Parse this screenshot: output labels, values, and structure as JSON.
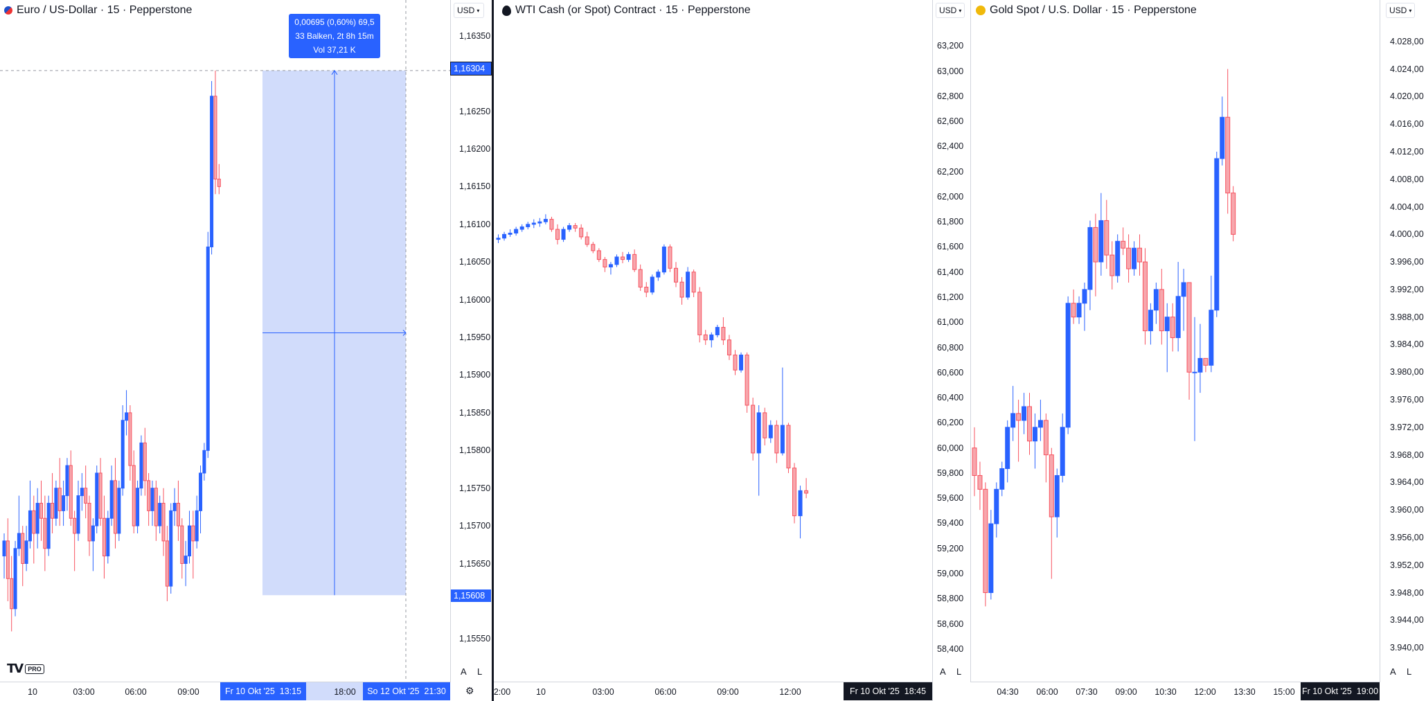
{
  "panes": [
    {
      "title": "Euro / US-Dollar · 15 · Pepperstone",
      "currency": "USD",
      "price_ticks": [
        "1,16350",
        "1,16250",
        "1,16200",
        "1,16150",
        "1,16100",
        "1,16050",
        "1,16000",
        "1,15950",
        "1,15900",
        "1,15850",
        "1,15800",
        "1,15750",
        "1,15700",
        "1,15650",
        "1,15550"
      ],
      "price_labels": {
        "top": "1,16304",
        "bottom": "1,15608"
      },
      "time_ticks": [
        "10",
        "03:00",
        "06:00",
        "09:00",
        "18:00"
      ],
      "time_labels": {
        "start": "Fr 10 Okt '25",
        "start_time": "13:15",
        "end": "So 12 Okt '25",
        "end_time": "21:30"
      },
      "measure": {
        "line1": "0,00695 (0,60%) 69,5",
        "line2": "33 Balken, 2t 8h 15m",
        "line3": "Vol 37,21 K"
      },
      "auto_btn": "A",
      "log_btn": "L"
    },
    {
      "title": "WTI Cash (or Spot) Contract · 15 · Pepperstone",
      "currency": "USD",
      "price_ticks": [
        "63,200",
        "63,000",
        "62,800",
        "62,600",
        "62,400",
        "62,200",
        "62,000",
        "61,800",
        "61,600",
        "61,400",
        "61,200",
        "61,000",
        "60,800",
        "60,600",
        "60,400",
        "60,200",
        "60,000",
        "59,800",
        "59,600",
        "59,400",
        "59,200",
        "59,000",
        "58,800",
        "58,600",
        "58,400"
      ],
      "time_ticks": [
        "2:00",
        "10",
        "03:00",
        "06:00",
        "09:00",
        "12:00"
      ],
      "time_labels": {
        "date": "Fr 10 Okt '25",
        "time": "18:45"
      },
      "auto_btn": "A",
      "log_btn": "L"
    },
    {
      "title": "Gold Spot / U.S. Dollar · 15 · Pepperstone",
      "currency": "USD",
      "price_ticks": [
        "4.028,00",
        "4.024,00",
        "4.020,00",
        "4.016,00",
        "4.012,00",
        "4.008,00",
        "4.004,00",
        "4.000,00",
        "3.996,00",
        "3.992,00",
        "3.988,00",
        "3.984,00",
        "3.980,00",
        "3.976,00",
        "3.972,00",
        "3.968,00",
        "3.964,00",
        "3.960,00",
        "3.956,00",
        "3.952,00",
        "3.948,00",
        "3.944,00",
        "3.940,00"
      ],
      "time_ticks": [
        "04:30",
        "06:00",
        "07:30",
        "09:00",
        "10:30",
        "12:00",
        "13:30",
        "15:00"
      ],
      "time_labels": {
        "date": "Fr 10 Okt '25",
        "time": "19:00"
      },
      "auto_btn": "A",
      "log_btn": "L"
    }
  ],
  "logo": {
    "pro": "PRO"
  },
  "colors": {
    "up": "#2962ff",
    "down": "#f7525f",
    "down_fill": "#f7a7ad",
    "measure_fill": "#d1dcfb",
    "text": "#131722"
  },
  "chart_data": [
    {
      "type": "candlestick",
      "symbol": "EURUSD",
      "ylim": [
        1.1552,
        1.1637
      ],
      "candles": [
        [
          1.1566,
          1.1569,
          1.1563,
          1.1568
        ],
        [
          1.1568,
          1.1571,
          1.156,
          1.1563
        ],
        [
          1.1563,
          1.1566,
          1.1556,
          1.1559
        ],
        [
          1.1559,
          1.1568,
          1.1558,
          1.1567
        ],
        [
          1.1567,
          1.1574,
          1.1566,
          1.1569
        ],
        [
          1.1569,
          1.157,
          1.1562,
          1.1565
        ],
        [
          1.1565,
          1.157,
          1.1564,
          1.1568
        ],
        [
          1.1568,
          1.1576,
          1.1567,
          1.1572
        ],
        [
          1.1572,
          1.1574,
          1.1565,
          1.1569
        ],
        [
          1.1569,
          1.1575,
          1.1567,
          1.1573
        ],
        [
          1.1573,
          1.1576,
          1.1568,
          1.1571
        ],
        [
          1.1571,
          1.1574,
          1.1564,
          1.1567
        ],
        [
          1.1567,
          1.1574,
          1.1566,
          1.1573
        ],
        [
          1.1573,
          1.1577,
          1.1569,
          1.1571
        ],
        [
          1.1571,
          1.1576,
          1.157,
          1.1575
        ],
        [
          1.1575,
          1.1579,
          1.157,
          1.1572
        ],
        [
          1.1572,
          1.1576,
          1.157,
          1.1574
        ],
        [
          1.1574,
          1.1579,
          1.1572,
          1.1578
        ],
        [
          1.1578,
          1.158,
          1.157,
          1.1571
        ],
        [
          1.1571,
          1.1572,
          1.1564,
          1.1569
        ],
        [
          1.1569,
          1.1576,
          1.1568,
          1.1574
        ],
        [
          1.1574,
          1.1577,
          1.1572,
          1.1575
        ],
        [
          1.1575,
          1.1578,
          1.1571,
          1.1573
        ],
        [
          1.1573,
          1.1574,
          1.1566,
          1.1568
        ],
        [
          1.1568,
          1.1571,
          1.1564,
          1.157
        ],
        [
          1.157,
          1.1578,
          1.1569,
          1.1577
        ],
        [
          1.1577,
          1.1579,
          1.157,
          1.1571
        ],
        [
          1.1571,
          1.1574,
          1.1563,
          1.1566
        ],
        [
          1.1566,
          1.1572,
          1.1565,
          1.1571
        ],
        [
          1.1571,
          1.1578,
          1.157,
          1.1576
        ],
        [
          1.1576,
          1.1579,
          1.1567,
          1.1569
        ],
        [
          1.1569,
          1.1576,
          1.1568,
          1.1575
        ],
        [
          1.1575,
          1.1586,
          1.1574,
          1.1584
        ],
        [
          1.1584,
          1.1588,
          1.1582,
          1.1585
        ],
        [
          1.1585,
          1.1586,
          1.1576,
          1.1578
        ],
        [
          1.1578,
          1.158,
          1.1569,
          1.157
        ],
        [
          1.157,
          1.1576,
          1.1569,
          1.1575
        ],
        [
          1.1575,
          1.1582,
          1.1574,
          1.1581
        ],
        [
          1.1581,
          1.1583,
          1.1574,
          1.1576
        ],
        [
          1.1576,
          1.1577,
          1.157,
          1.1572
        ],
        [
          1.1572,
          1.1576,
          1.157,
          1.1575
        ],
        [
          1.1575,
          1.1576,
          1.1568,
          1.157
        ],
        [
          1.157,
          1.1574,
          1.1569,
          1.1573
        ],
        [
          1.1573,
          1.1575,
          1.1566,
          1.1568
        ],
        [
          1.1568,
          1.157,
          1.156,
          1.1562
        ],
        [
          1.1562,
          1.1573,
          1.1561,
          1.1572
        ],
        [
          1.1572,
          1.1575,
          1.157,
          1.1573
        ],
        [
          1.1573,
          1.1576,
          1.1568,
          1.157
        ],
        [
          1.157,
          1.1571,
          1.1563,
          1.1565
        ],
        [
          1.1565,
          1.1568,
          1.1562,
          1.1566
        ],
        [
          1.1566,
          1.1572,
          1.1565,
          1.157
        ],
        [
          1.157,
          1.1572,
          1.1563,
          1.1568
        ],
        [
          1.1568,
          1.1574,
          1.1567,
          1.1572
        ],
        [
          1.1572,
          1.1578,
          1.1569,
          1.1577
        ],
        [
          1.1577,
          1.1581,
          1.1576,
          1.158
        ],
        [
          1.158,
          1.1609,
          1.1579,
          1.1607
        ],
        [
          1.1607,
          1.1629,
          1.1606,
          1.1627
        ],
        [
          1.1627,
          1.16304,
          1.1614,
          1.1616
        ],
        [
          1.1616,
          1.1618,
          1.1614,
          1.1615
        ]
      ]
    },
    {
      "type": "candlestick",
      "symbol": "WTI",
      "ylim": [
        58.3,
        63.4
      ],
      "candles": [
        [
          61.66,
          61.7,
          61.63,
          61.67
        ],
        [
          61.67,
          61.72,
          61.65,
          61.7
        ],
        [
          61.7,
          61.74,
          61.68,
          61.71
        ],
        [
          61.71,
          61.76,
          61.69,
          61.74
        ],
        [
          61.74,
          61.78,
          61.72,
          61.76
        ],
        [
          61.76,
          61.8,
          61.74,
          61.78
        ],
        [
          61.78,
          61.82,
          61.75,
          61.79
        ],
        [
          61.79,
          61.83,
          61.76,
          61.8
        ],
        [
          61.8,
          61.86,
          61.78,
          61.82
        ],
        [
          61.82,
          61.84,
          61.72,
          61.74
        ],
        [
          61.74,
          61.78,
          61.62,
          61.66
        ],
        [
          61.66,
          61.76,
          61.64,
          61.74
        ],
        [
          61.74,
          61.79,
          61.72,
          61.77
        ],
        [
          61.77,
          61.79,
          61.72,
          61.75
        ],
        [
          61.75,
          61.78,
          61.66,
          61.68
        ],
        [
          61.68,
          61.72,
          61.6,
          61.62
        ],
        [
          61.62,
          61.64,
          61.55,
          61.57
        ],
        [
          61.57,
          61.59,
          61.48,
          61.5
        ],
        [
          61.5,
          61.52,
          61.4,
          61.44
        ],
        [
          61.44,
          61.48,
          61.38,
          61.46
        ],
        [
          61.46,
          61.54,
          61.44,
          61.52
        ],
        [
          61.52,
          61.56,
          61.47,
          61.5
        ],
        [
          61.5,
          61.56,
          61.48,
          61.54
        ],
        [
          61.54,
          61.58,
          61.4,
          61.42
        ],
        [
          61.42,
          61.46,
          61.25,
          61.28
        ],
        [
          61.28,
          61.32,
          61.2,
          61.24
        ],
        [
          61.24,
          61.38,
          61.22,
          61.36
        ],
        [
          61.36,
          61.42,
          61.33,
          61.4
        ],
        [
          61.4,
          61.62,
          61.38,
          61.6
        ],
        [
          61.6,
          61.62,
          61.4,
          61.43
        ],
        [
          61.43,
          61.48,
          61.28,
          61.32
        ],
        [
          61.32,
          61.36,
          61.14,
          61.2
        ],
        [
          61.2,
          61.44,
          61.18,
          61.4
        ],
        [
          61.4,
          61.42,
          61.2,
          61.24
        ],
        [
          61.24,
          61.28,
          60.84,
          60.9
        ],
        [
          60.9,
          60.94,
          60.82,
          60.86
        ],
        [
          60.86,
          60.92,
          60.8,
          60.9
        ],
        [
          60.9,
          60.98,
          60.88,
          60.96
        ],
        [
          60.96,
          61.04,
          60.82,
          60.86
        ],
        [
          60.86,
          60.9,
          60.7,
          60.74
        ],
        [
          60.74,
          60.78,
          60.58,
          60.62
        ],
        [
          60.62,
          60.76,
          60.6,
          60.74
        ],
        [
          60.74,
          60.76,
          60.28,
          60.34
        ],
        [
          60.34,
          60.4,
          59.9,
          59.96
        ],
        [
          59.96,
          60.34,
          59.62,
          60.28
        ],
        [
          60.28,
          60.32,
          60.02,
          60.08
        ],
        [
          60.08,
          60.22,
          60.04,
          60.18
        ],
        [
          60.18,
          60.22,
          59.88,
          59.96
        ],
        [
          59.96,
          60.64,
          59.94,
          60.18
        ],
        [
          60.18,
          60.2,
          59.8,
          59.84
        ],
        [
          59.84,
          59.88,
          59.4,
          59.46
        ],
        [
          59.46,
          59.7,
          59.28,
          59.66
        ],
        [
          59.66,
          59.76,
          59.6,
          59.64
        ]
      ]
    },
    {
      "type": "candlestick",
      "symbol": "XAUUSD",
      "ylim": [
        3938.0,
        4031.0
      ],
      "candles": [
        [
          3969.0,
          3972.0,
          3962.0,
          3965.0
        ],
        [
          3965.0,
          3967.0,
          3960.0,
          3963.0
        ],
        [
          3963.0,
          3964.0,
          3946.0,
          3948.0
        ],
        [
          3948.0,
          3960.0,
          3947.0,
          3958.0
        ],
        [
          3958.0,
          3964.0,
          3956.0,
          3963.0
        ],
        [
          3963.0,
          3967.0,
          3962.0,
          3966.0
        ],
        [
          3966.0,
          3973.0,
          3964.0,
          3972.0
        ],
        [
          3972.0,
          3978.0,
          3970.0,
          3974.0
        ],
        [
          3974.0,
          3976.0,
          3967.0,
          3973.0
        ],
        [
          3973.0,
          3977.0,
          3971.0,
          3975.0
        ],
        [
          3975.0,
          3977.0,
          3968.0,
          3970.0
        ],
        [
          3970.0,
          3974.0,
          3966.0,
          3972.0
        ],
        [
          3972.0,
          3976.0,
          3970.0,
          3973.0
        ],
        [
          3973.0,
          3974.0,
          3964.0,
          3968.0
        ],
        [
          3968.0,
          3969.0,
          3950.0,
          3959.0
        ],
        [
          3959.0,
          3966.0,
          3956.0,
          3965.0
        ],
        [
          3965.0,
          3974.0,
          3964.0,
          3972.0
        ],
        [
          3972.0,
          3991.0,
          3971.0,
          3990.0
        ],
        [
          3990.0,
          3992.0,
          3987.0,
          3988.0
        ],
        [
          3988.0,
          3991.0,
          3987.0,
          3990.0
        ],
        [
          3990.0,
          3993.0,
          3986.0,
          3992.0
        ],
        [
          3992.0,
          4002.0,
          3989.0,
          4001.0
        ],
        [
          4001.0,
          4003.0,
          3991.0,
          3996.0
        ],
        [
          3996.0,
          4006.0,
          3994.0,
          4002.0
        ],
        [
          4002.0,
          4005.0,
          3995.0,
          3997.0
        ],
        [
          3997.0,
          3999.0,
          3992.0,
          3994.0
        ],
        [
          3994.0,
          4000.0,
          3993.0,
          3999.0
        ],
        [
          3999.0,
          4001.0,
          3997.0,
          3998.0
        ],
        [
          3998.0,
          4000.0,
          3993.0,
          3995.0
        ],
        [
          3995.0,
          3999.0,
          3994.0,
          3998.0
        ],
        [
          3998.0,
          4000.0,
          3994.0,
          3996.0
        ],
        [
          3996.0,
          3998.0,
          3984.0,
          3986.0
        ],
        [
          3986.0,
          3990.0,
          3984.0,
          3989.0
        ],
        [
          3989.0,
          3993.0,
          3987.0,
          3992.0
        ],
        [
          3992.0,
          3995.0,
          3984.0,
          3986.0
        ],
        [
          3986.0,
          3990.0,
          3980.0,
          3988.0
        ],
        [
          3988.0,
          3990.0,
          3983.0,
          3985.0
        ],
        [
          3985.0,
          3996.0,
          3983.0,
          3991.0
        ],
        [
          3991.0,
          3995.0,
          3986.0,
          3993.0
        ],
        [
          3993.0,
          3993.0,
          3976.0,
          3980.0
        ],
        [
          3980.0,
          3988.0,
          3970.0,
          3980.0
        ],
        [
          3980.0,
          3987.0,
          3977.0,
          3982.0
        ],
        [
          3982.0,
          3982.0,
          3980.0,
          3981.0
        ],
        [
          3981.0,
          3994.0,
          3980.0,
          3989.0
        ],
        [
          3989.0,
          4012.0,
          3988.0,
          4011.0
        ],
        [
          4011.0,
          4020.0,
          4010.0,
          4017.0
        ],
        [
          4017.0,
          4024.0,
          4003.0,
          4006.0
        ],
        [
          4006.0,
          4007.0,
          3999.0,
          4000.0
        ]
      ]
    }
  ]
}
